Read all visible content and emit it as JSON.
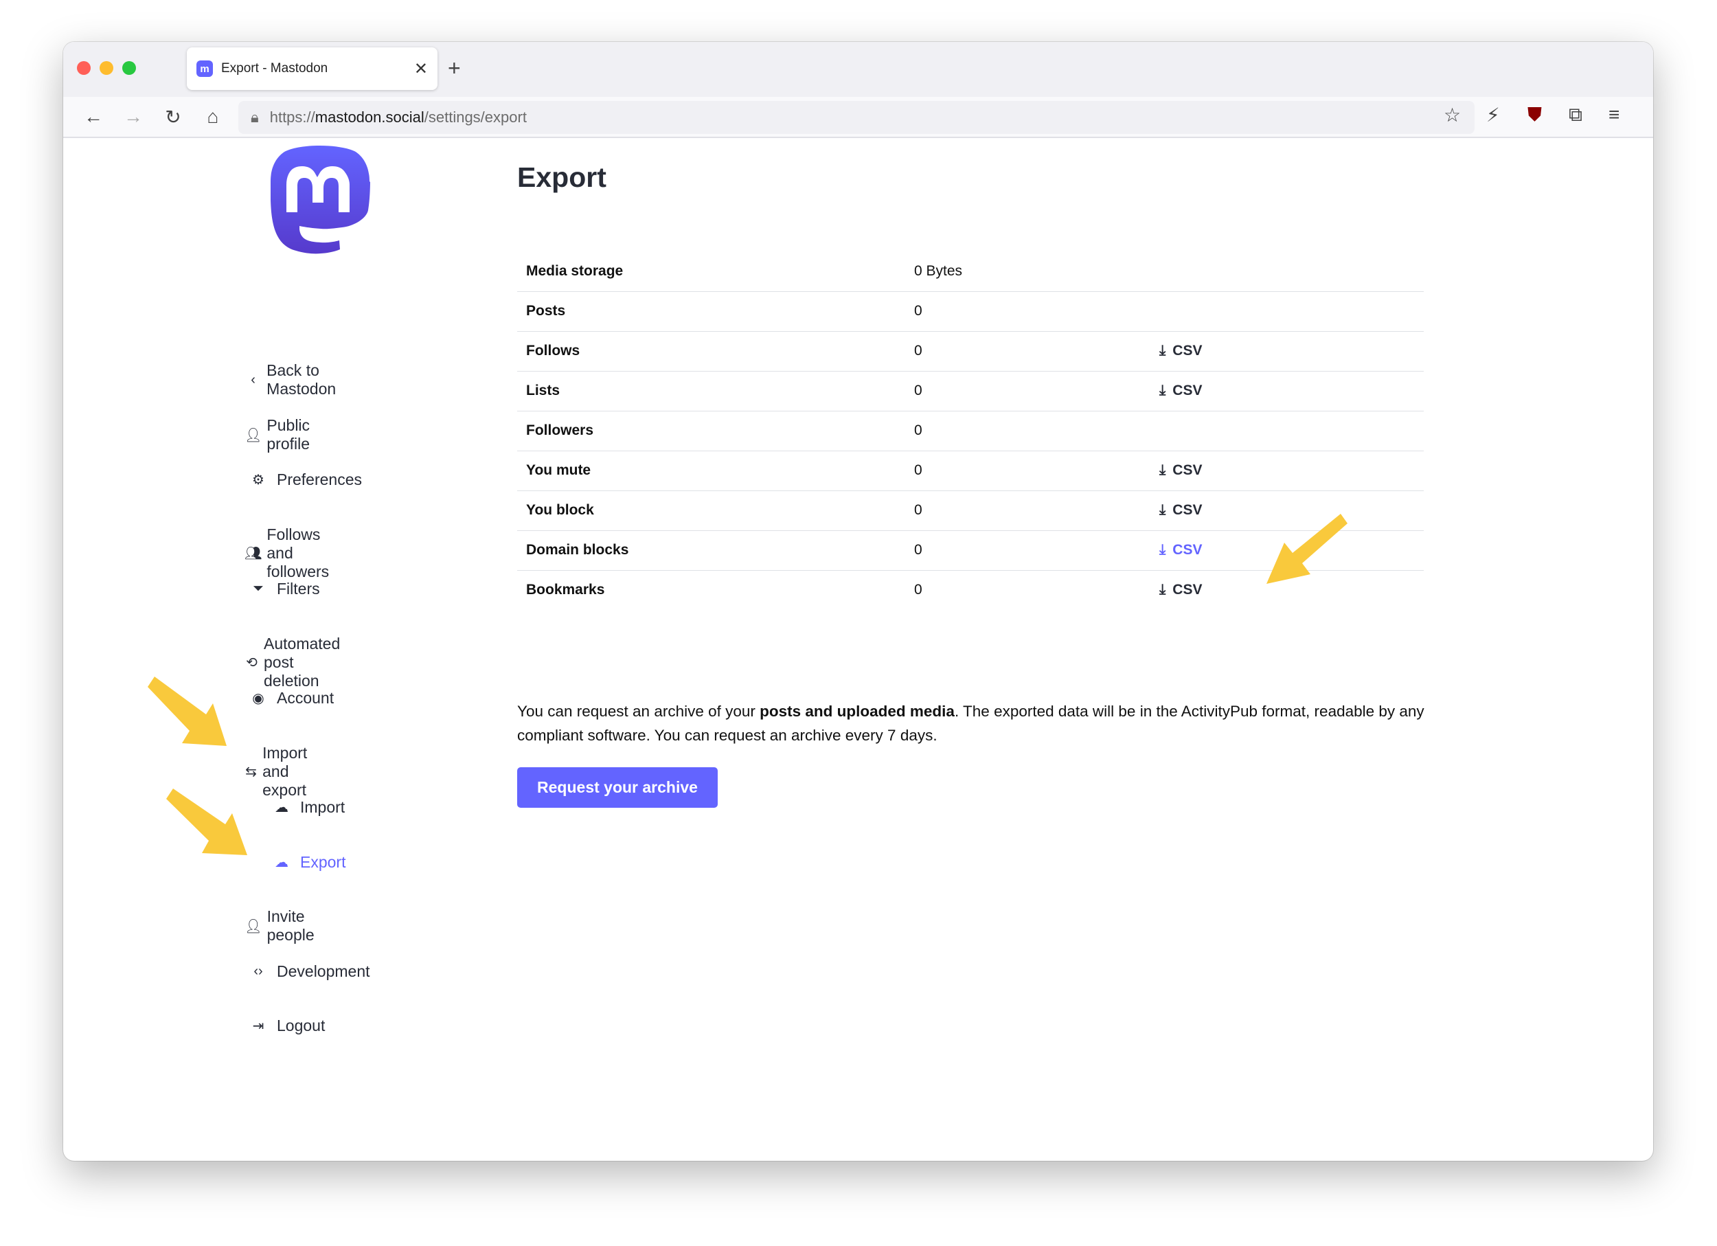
{
  "browser": {
    "tab_title": "Export - Mastodon",
    "url_prefix": "https://",
    "url_host": "mastodon.social",
    "url_path": "/settings/export",
    "traffic_colors": [
      "#ff5f57",
      "#febc2e",
      "#28c840"
    ]
  },
  "sidebar": {
    "items": [
      {
        "label": "Back to Mastodon",
        "icon": "chevron-left-icon"
      },
      {
        "label": "Public profile",
        "icon": "person-icon"
      },
      {
        "label": "Preferences",
        "icon": "gear-icon"
      },
      {
        "label": "Follows and followers",
        "icon": "people-icon"
      },
      {
        "label": "Filters",
        "icon": "filter-icon"
      },
      {
        "label": "Automated post deletion",
        "icon": "history-icon"
      },
      {
        "label": "Account",
        "icon": "user-circle-icon"
      },
      {
        "label": "Import and export",
        "icon": "import-export-icon"
      },
      {
        "label": "Import",
        "icon": "cloud-upload-icon",
        "sub": true
      },
      {
        "label": "Export",
        "icon": "cloud-download-icon",
        "sub": true,
        "active": true
      },
      {
        "label": "Invite people",
        "icon": "user-plus-icon"
      },
      {
        "label": "Development",
        "icon": "code-icon"
      },
      {
        "label": "Logout",
        "icon": "logout-icon"
      }
    ]
  },
  "main": {
    "title": "Export",
    "rows": [
      {
        "label": "Media storage",
        "value": "0 Bytes",
        "csv": ""
      },
      {
        "label": "Posts",
        "value": "0",
        "csv": ""
      },
      {
        "label": "Follows",
        "value": "0",
        "csv": "CSV"
      },
      {
        "label": "Lists",
        "value": "0",
        "csv": "CSV"
      },
      {
        "label": "Followers",
        "value": "0",
        "csv": ""
      },
      {
        "label": "You mute",
        "value": "0",
        "csv": "CSV"
      },
      {
        "label": "You block",
        "value": "0",
        "csv": "CSV"
      },
      {
        "label": "Domain blocks",
        "value": "0",
        "csv": "CSV",
        "highlight": true
      },
      {
        "label": "Bookmarks",
        "value": "0",
        "csv": "CSV"
      }
    ],
    "info_before": "You can request an archive of your ",
    "info_bold": "posts and uploaded media",
    "info_after": ". The exported data will be in the ActivityPub format, readable by any compliant software. You can request an archive every 7 days.",
    "button": "Request your archive"
  },
  "colors": {
    "accent": "#6364ff",
    "annotation_arrow": "#f9c93c"
  }
}
